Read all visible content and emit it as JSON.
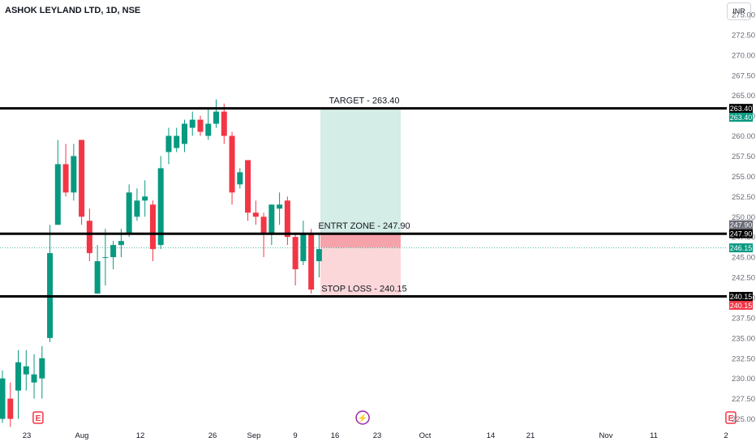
{
  "header": {
    "symbol": "ASHOK LEYLAND LTD, 1D, NSE",
    "currency": "INR"
  },
  "colors": {
    "up": "#089981",
    "down": "#f23645",
    "target_zone": "#d4ede6",
    "stop_zone": "#fbd7da",
    "entry_band": "#f5a3aa",
    "event_earnings": "#f23645",
    "event_dividend": "#9c27b0",
    "current_price_line": "#089981"
  },
  "chart_data": {
    "type": "candlestick",
    "ylim": [
      223.5,
      276
    ],
    "y_ticks": [
      "225.00",
      "227.50",
      "230.00",
      "232.50",
      "235.00",
      "237.50",
      "240.00",
      "242.50",
      "245.00",
      "247.50",
      "250.00",
      "252.50",
      "255.00",
      "257.50",
      "260.00",
      "262.50",
      "265.00",
      "267.50",
      "270.00",
      "272.50",
      "275.00"
    ],
    "x_ticks": [
      "23",
      "Aug",
      "12",
      "26",
      "Sep",
      "9",
      "16",
      "23",
      "Oct",
      "14",
      "21",
      "Nov",
      "11",
      "2"
    ],
    "candles": [
      {
        "o": 225.0,
        "h": 231.0,
        "l": 224.5,
        "c": 230.0
      },
      {
        "o": 227.5,
        "h": 229.5,
        "l": 224.0,
        "c": 225.0
      },
      {
        "o": 228.5,
        "h": 233.5,
        "l": 225.0,
        "c": 232.0
      },
      {
        "o": 230.5,
        "h": 233.5,
        "l": 228.5,
        "c": 231.5
      },
      {
        "o": 229.5,
        "h": 233.0,
        "l": 227.5,
        "c": 230.5
      },
      {
        "o": 230.0,
        "h": 234.0,
        "l": 227.5,
        "c": 232.5
      },
      {
        "o": 235.0,
        "h": 249.0,
        "l": 234.5,
        "c": 245.5
      },
      {
        "o": 249.0,
        "h": 259.5,
        "l": 249.0,
        "c": 256.5
      },
      {
        "o": 256.5,
        "h": 259.0,
        "l": 252.5,
        "c": 253.0
      },
      {
        "o": 253.0,
        "h": 259.0,
        "l": 252.0,
        "c": 257.5
      },
      {
        "o": 259.5,
        "h": 259.5,
        "l": 249.0,
        "c": 250.0
      },
      {
        "o": 249.5,
        "h": 251.0,
        "l": 244.5,
        "c": 245.5
      },
      {
        "o": 240.5,
        "h": 246.5,
        "l": 240.5,
        "c": 244.5
      },
      {
        "o": 245.0,
        "h": 248.5,
        "l": 241.5,
        "c": 245.0
      },
      {
        "o": 245.0,
        "h": 247.0,
        "l": 243.5,
        "c": 246.5
      },
      {
        "o": 246.5,
        "h": 248.5,
        "l": 245.0,
        "c": 247.0
      },
      {
        "o": 248.0,
        "h": 254.0,
        "l": 247.5,
        "c": 253.0
      },
      {
        "o": 250.0,
        "h": 253.5,
        "l": 249.5,
        "c": 252.0
      },
      {
        "o": 252.0,
        "h": 254.5,
        "l": 250.0,
        "c": 252.5
      },
      {
        "o": 251.5,
        "h": 252.0,
        "l": 244.5,
        "c": 246.0
      },
      {
        "o": 246.5,
        "h": 257.5,
        "l": 246.0,
        "c": 256.0
      },
      {
        "o": 258.0,
        "h": 261.0,
        "l": 256.5,
        "c": 260.0
      },
      {
        "o": 258.5,
        "h": 261.0,
        "l": 258.0,
        "c": 260.0
      },
      {
        "o": 259.0,
        "h": 262.0,
        "l": 258.0,
        "c": 261.5
      },
      {
        "o": 261.0,
        "h": 263.0,
        "l": 260.0,
        "c": 262.0
      },
      {
        "o": 262.0,
        "h": 262.5,
        "l": 260.0,
        "c": 260.5
      },
      {
        "o": 260.0,
        "h": 263.5,
        "l": 259.5,
        "c": 261.5
      },
      {
        "o": 261.5,
        "h": 264.5,
        "l": 261.0,
        "c": 263.0
      },
      {
        "o": 263.0,
        "h": 264.0,
        "l": 259.0,
        "c": 260.0
      },
      {
        "o": 260.0,
        "h": 260.5,
        "l": 251.5,
        "c": 253.0
      },
      {
        "o": 254.0,
        "h": 256.0,
        "l": 253.5,
        "c": 255.5
      },
      {
        "o": 257.0,
        "h": 257.0,
        "l": 249.5,
        "c": 250.5
      },
      {
        "o": 250.5,
        "h": 252.0,
        "l": 249.0,
        "c": 250.0
      },
      {
        "o": 250.0,
        "h": 250.5,
        "l": 245.0,
        "c": 248.0
      },
      {
        "o": 248.0,
        "h": 251.5,
        "l": 246.5,
        "c": 251.5
      },
      {
        "o": 251.0,
        "h": 253.0,
        "l": 249.0,
        "c": 251.5
      },
      {
        "o": 252.0,
        "h": 252.5,
        "l": 246.5,
        "c": 247.5
      },
      {
        "o": 247.5,
        "h": 248.0,
        "l": 241.5,
        "c": 243.5
      },
      {
        "o": 244.5,
        "h": 249.5,
        "l": 244.0,
        "c": 248.0
      },
      {
        "o": 248.0,
        "h": 248.5,
        "l": 240.5,
        "c": 241.0
      },
      {
        "o": 244.5,
        "h": 248.0,
        "l": 242.5,
        "c": 246.0
      }
    ],
    "levels": [
      {
        "name": "target",
        "price": 263.4,
        "label": "TARGET - 263.40"
      },
      {
        "name": "entry",
        "price": 247.9,
        "label": "ENTRT ZONE - 247.90"
      },
      {
        "name": "stop",
        "price": 240.15,
        "label": "STOP LOSS - 240.15"
      }
    ],
    "position": {
      "entry": 247.9,
      "target": 263.4,
      "stop": 240.15
    },
    "current_price": 246.15,
    "price_tags": [
      {
        "text": "263.40",
        "price": 263.4,
        "bg": "#000000",
        "fg": "#ffffff",
        "offset": 0
      },
      {
        "text": "263.40",
        "price": 263.4,
        "bg": "#089981",
        "fg": "#ffffff",
        "offset": 1
      },
      {
        "text": "247.90",
        "price": 247.9,
        "bg": "#6a6d78",
        "fg": "#ffffff",
        "offset": -1
      },
      {
        "text": "247.90",
        "price": 247.9,
        "bg": "#000000",
        "fg": "#ffffff",
        "offset": 0
      },
      {
        "text": "246.15",
        "price": 246.15,
        "bg": "#089981",
        "fg": "#ffffff",
        "offset": 0
      },
      {
        "text": "240.15",
        "price": 240.15,
        "bg": "#000000",
        "fg": "#ffffff",
        "offset": 0
      },
      {
        "text": "240.15",
        "price": 240.15,
        "bg": "#f23645",
        "fg": "#ffffff",
        "offset": 1
      }
    ],
    "events": [
      {
        "type": "earnings",
        "label": "E",
        "candle": 4.5
      },
      {
        "type": "dividend",
        "label": "⚡",
        "candle": 45.5
      },
      {
        "type": "earnings",
        "label": "E",
        "candle": 92
      }
    ]
  }
}
